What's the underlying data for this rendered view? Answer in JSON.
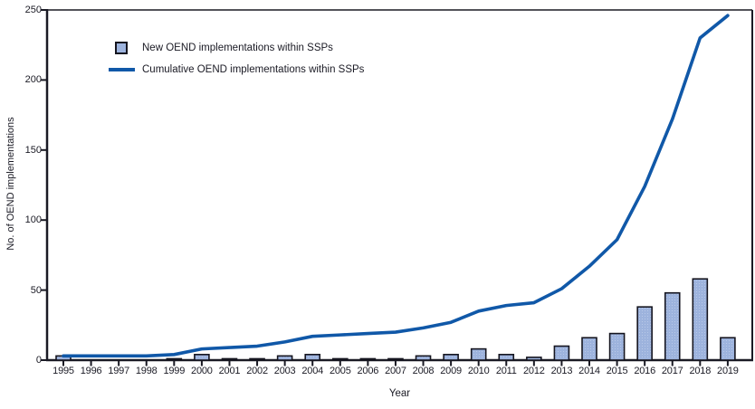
{
  "colors": {
    "line": "#1058a8",
    "bar_fill": "#9db3dd",
    "bar_fill_dot": "#b9c9e8",
    "bar_border": "#15151f",
    "axis": "#1a1a24",
    "text": "#1a1a24",
    "background": "#ffffff"
  },
  "chart_data": {
    "type": "combo-bar-line",
    "title": "",
    "xlabel": "Year",
    "ylabel": "No. of OEND implementations",
    "x": [
      1995,
      1996,
      1997,
      1998,
      1999,
      2000,
      2001,
      2002,
      2003,
      2004,
      2005,
      2006,
      2007,
      2008,
      2009,
      2010,
      2011,
      2012,
      2013,
      2014,
      2015,
      2016,
      2017,
      2018,
      2019
    ],
    "series": [
      {
        "name": "New OEND implementations within SSPs",
        "type": "bar",
        "values": [
          3,
          0,
          0,
          0,
          1,
          4,
          1,
          1,
          3,
          4,
          1,
          1,
          1,
          3,
          4,
          8,
          4,
          2,
          10,
          16,
          19,
          38,
          48,
          58,
          16
        ]
      },
      {
        "name": "Cumulative OEND implementations within SSPs",
        "type": "line",
        "values": [
          3,
          3,
          3,
          3,
          4,
          8,
          9,
          10,
          13,
          17,
          18,
          19,
          20,
          23,
          27,
          35,
          39,
          41,
          51,
          67,
          86,
          124,
          172,
          230,
          246
        ]
      }
    ],
    "ylim": [
      0,
      250
    ],
    "yticks": [
      0,
      50,
      100,
      150,
      200,
      250
    ],
    "grid": false,
    "legend_position": "inside-top-left",
    "plot_border": "full-box"
  }
}
